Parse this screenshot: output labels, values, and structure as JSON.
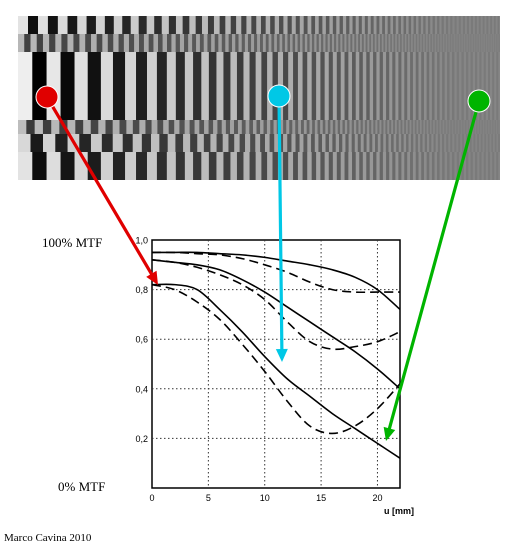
{
  "annotations": {
    "top_label": "100% MTF",
    "bottom_label": "0% MTF",
    "credit": "Marco Cavina 2010"
  },
  "colors": {
    "arrow_low": "#e00000",
    "arrow_mid": "#00c8e6",
    "arrow_high": "#00b400",
    "curve": "#000000",
    "grid": "#333333"
  },
  "test_pattern": {
    "description_icon": "bar-target-icon"
  },
  "chart_data": {
    "type": "line",
    "title": "",
    "xlabel": "u [mm]",
    "ylabel": "",
    "xlim": [
      0,
      22
    ],
    "ylim": [
      0,
      1
    ],
    "x_ticks": [
      0,
      5,
      10,
      15,
      20
    ],
    "x_tick_labels": [
      "0",
      "5",
      "10",
      "15",
      "20"
    ],
    "y_ticks": [
      0.2,
      0.4,
      0.6,
      0.8,
      1.0
    ],
    "y_tick_labels": [
      "0,2",
      "0,4",
      "0,6",
      "0,8",
      "1,0"
    ],
    "grid": true,
    "series": [
      {
        "style": "solid",
        "x": [
          0,
          2,
          4,
          6,
          8,
          10,
          12,
          14,
          16,
          18,
          20,
          22
        ],
        "y": [
          0.95,
          0.95,
          0.95,
          0.945,
          0.94,
          0.93,
          0.915,
          0.9,
          0.88,
          0.85,
          0.8,
          0.72
        ]
      },
      {
        "style": "dashed",
        "x": [
          0,
          2,
          4,
          6,
          8,
          10,
          12,
          14,
          16,
          18,
          20,
          22
        ],
        "y": [
          0.95,
          0.95,
          0.945,
          0.94,
          0.925,
          0.9,
          0.87,
          0.83,
          0.8,
          0.79,
          0.79,
          0.79
        ]
      },
      {
        "style": "solid",
        "x": [
          0,
          2,
          4,
          6,
          8,
          10,
          12,
          14,
          16,
          18,
          20,
          22
        ],
        "y": [
          0.92,
          0.91,
          0.9,
          0.88,
          0.84,
          0.79,
          0.73,
          0.67,
          0.61,
          0.55,
          0.48,
          0.4
        ]
      },
      {
        "style": "dashed",
        "x": [
          0,
          2,
          4,
          6,
          8,
          10,
          12,
          14,
          16,
          18,
          20,
          22
        ],
        "y": [
          0.92,
          0.91,
          0.89,
          0.86,
          0.82,
          0.76,
          0.67,
          0.59,
          0.56,
          0.57,
          0.59,
          0.63
        ]
      },
      {
        "style": "solid",
        "x": [
          0,
          2,
          4,
          6,
          8,
          10,
          12,
          14,
          16,
          18,
          20,
          22
        ],
        "y": [
          0.82,
          0.82,
          0.8,
          0.72,
          0.63,
          0.53,
          0.44,
          0.37,
          0.3,
          0.24,
          0.18,
          0.12
        ]
      },
      {
        "style": "dashed",
        "x": [
          0,
          2,
          4,
          6,
          8,
          10,
          12,
          14,
          16,
          18,
          20,
          22
        ],
        "y": [
          0.82,
          0.8,
          0.75,
          0.68,
          0.58,
          0.47,
          0.35,
          0.25,
          0.22,
          0.25,
          0.32,
          0.42
        ]
      }
    ]
  }
}
